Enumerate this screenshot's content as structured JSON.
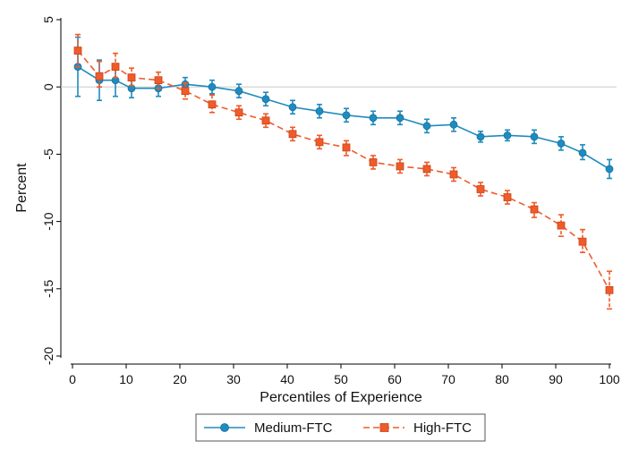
{
  "chart_data": {
    "type": "line",
    "xlabel": "Percentiles of Experience",
    "ylabel": "Percent",
    "xlim": [
      0,
      100
    ],
    "ylim": [
      -20,
      5
    ],
    "xticks": [
      0,
      10,
      20,
      30,
      40,
      50,
      60,
      70,
      80,
      90,
      100
    ],
    "yticks": [
      5,
      0,
      -5,
      -10,
      -15,
      -20
    ],
    "reference_line_y": 0,
    "grid": false,
    "legend_position": "bottom",
    "series": [
      {
        "name": "Medium-FTC",
        "color": "#1f8bbf",
        "line_style": "solid",
        "marker": "circle",
        "x": [
          1,
          5,
          8,
          11,
          16,
          21,
          26,
          31,
          36,
          41,
          46,
          51,
          56,
          61,
          66,
          71,
          76,
          81,
          86,
          91,
          95,
          100
        ],
        "y": [
          1.5,
          0.5,
          0.5,
          -0.1,
          -0.1,
          0.2,
          0.0,
          -0.3,
          -0.9,
          -1.5,
          -1.8,
          -2.1,
          -2.3,
          -2.3,
          -2.9,
          -2.8,
          -3.7,
          -3.6,
          -3.7,
          -4.2,
          -4.9,
          -6.1
        ],
        "lo": [
          -0.7,
          -1.0,
          -0.7,
          -0.8,
          -0.7,
          -0.3,
          -0.5,
          -0.8,
          -1.4,
          -2.0,
          -2.3,
          -2.6,
          -2.8,
          -2.8,
          -3.4,
          -3.3,
          -4.1,
          -4.0,
          -4.2,
          -4.7,
          -5.4,
          -6.8
        ],
        "hi": [
          3.7,
          2.0,
          1.7,
          0.6,
          0.5,
          0.7,
          0.5,
          0.2,
          -0.4,
          -1.0,
          -1.3,
          -1.6,
          -1.8,
          -1.8,
          -2.4,
          -2.3,
          -3.3,
          -3.2,
          -3.2,
          -3.7,
          -4.3,
          -5.4
        ]
      },
      {
        "name": "High-FTC",
        "color": "#ef5b2a",
        "line_style": "dashed",
        "marker": "square",
        "x": [
          1,
          5,
          8,
          11,
          16,
          21,
          26,
          31,
          36,
          41,
          46,
          51,
          56,
          61,
          66,
          71,
          76,
          81,
          86,
          91,
          95,
          100
        ],
        "y": [
          2.7,
          0.8,
          1.5,
          0.7,
          0.5,
          -0.3,
          -1.3,
          -1.9,
          -2.5,
          -3.5,
          -4.1,
          -4.5,
          -5.6,
          -5.9,
          -6.1,
          -6.5,
          -7.6,
          -8.2,
          -9.1,
          -10.3,
          -11.5,
          -15.1
        ],
        "lo": [
          1.5,
          0.0,
          0.7,
          0.1,
          -0.1,
          -0.9,
          -1.9,
          -2.4,
          -3.0,
          -4.0,
          -4.6,
          -5.1,
          -6.1,
          -6.4,
          -6.6,
          -7.0,
          -8.1,
          -8.7,
          -9.7,
          -11.1,
          -12.3,
          -16.5
        ],
        "hi": [
          3.9,
          1.9,
          2.5,
          1.4,
          1.1,
          0.3,
          -0.6,
          -1.4,
          -2.0,
          -3.0,
          -3.6,
          -4.0,
          -5.1,
          -5.4,
          -5.6,
          -6.0,
          -7.1,
          -7.7,
          -8.6,
          -9.5,
          -10.6,
          -13.7
        ]
      }
    ]
  }
}
